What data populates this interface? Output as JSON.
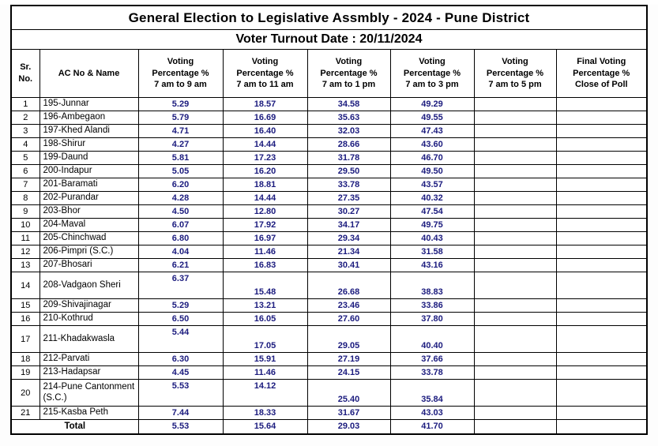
{
  "title": "General Election to Legislative Assmbly - 2024 - Pune District",
  "subtitle": "Voter Turnout Date : 20/11/2024",
  "colors": {
    "number_text": "#1b1b7e",
    "name_text": "#000000",
    "border": "#000000"
  },
  "table": {
    "columns": [
      {
        "lines": [
          "Sr.",
          "No."
        ]
      },
      {
        "lines": [
          "AC No & Name"
        ]
      },
      {
        "lines": [
          "Voting",
          "Percentage %",
          "7 am to 9 am"
        ]
      },
      {
        "lines": [
          "Voting",
          "Percentage %",
          "7 am to 11 am"
        ]
      },
      {
        "lines": [
          "Voting",
          "Percentage %",
          "7 am to 1 pm"
        ]
      },
      {
        "lines": [
          "Voting",
          "Percentage %",
          "7 am to 3 pm"
        ]
      },
      {
        "lines": [
          "Voting",
          "Percentage %",
          "7 am to 5 pm"
        ]
      },
      {
        "lines": [
          "Final Voting",
          "Percentage %",
          "Close of Poll"
        ]
      }
    ],
    "rows": [
      {
        "sr": "1",
        "name": "195-Junnar",
        "values": [
          "5.29",
          "18.57",
          "34.58",
          "49.29",
          "",
          ""
        ]
      },
      {
        "sr": "2",
        "name": "196-Ambegaon",
        "values": [
          "5.79",
          "16.69",
          "35.63",
          "49.55",
          "",
          ""
        ]
      },
      {
        "sr": "3",
        "name": "197-Khed Alandi",
        "values": [
          "4.71",
          "16.40",
          "32.03",
          "47.43",
          "",
          ""
        ]
      },
      {
        "sr": "4",
        "name": "198-Shirur",
        "values": [
          "4.27",
          "14.44",
          "28.66",
          "43.60",
          "",
          ""
        ]
      },
      {
        "sr": "5",
        "name": "199-Daund",
        "values": [
          "5.81",
          "17.23",
          "31.78",
          "46.70",
          "",
          ""
        ]
      },
      {
        "sr": "6",
        "name": "200-Indapur",
        "values": [
          "5.05",
          "16.20",
          "29.50",
          "49.50",
          "",
          ""
        ]
      },
      {
        "sr": "7",
        "name": "201-Baramati",
        "values": [
          "6.20",
          "18.81",
          "33.78",
          "43.57",
          "",
          ""
        ]
      },
      {
        "sr": "8",
        "name": "202-Purandar",
        "values": [
          "4.28",
          "14.44",
          "27.35",
          "40.32",
          "",
          ""
        ]
      },
      {
        "sr": "9",
        "name": "203-Bhor",
        "values": [
          "4.50",
          "12.80",
          "30.27",
          "47.54",
          "",
          ""
        ]
      },
      {
        "sr": "10",
        "name": "204-Maval",
        "values": [
          "6.07",
          "17.92",
          "34.17",
          "49.75",
          "",
          ""
        ]
      },
      {
        "sr": "11",
        "name": "205-Chinchwad",
        "values": [
          "6.80",
          "16.97",
          "29.34",
          "40.43",
          "",
          ""
        ]
      },
      {
        "sr": "12",
        "name": "206-Pimpri (S.C.)",
        "values": [
          "4.04",
          "11.46",
          "21.34",
          "31.58",
          "",
          ""
        ]
      },
      {
        "sr": "13",
        "name": "207-Bhosari",
        "values": [
          "6.21",
          "16.83",
          "30.41",
          "43.16",
          "",
          ""
        ]
      },
      {
        "sr": "14",
        "name": "208-Vadgaon Sheri",
        "tall": true,
        "valign": [
          "top",
          "bottom",
          "bottom",
          "bottom",
          "",
          ""
        ],
        "values": [
          "6.37",
          "15.48",
          "26.68",
          "38.83",
          "",
          ""
        ]
      },
      {
        "sr": "15",
        "name": "209-Shivajinagar",
        "values": [
          "5.29",
          "13.21",
          "23.46",
          "33.86",
          "",
          ""
        ]
      },
      {
        "sr": "16",
        "name": "210-Kothrud",
        "values": [
          "6.50",
          "16.05",
          "27.60",
          "37.80",
          "",
          ""
        ]
      },
      {
        "sr": "17",
        "name": "211-Khadakwasla",
        "tall": true,
        "valign": [
          "top",
          "bottom",
          "bottom",
          "bottom",
          "",
          ""
        ],
        "values": [
          "5.44",
          "17.05",
          "29.05",
          "40.40",
          "",
          ""
        ]
      },
      {
        "sr": "18",
        "name": "212-Parvati",
        "values": [
          "6.30",
          "15.91",
          "27.19",
          "37.66",
          "",
          ""
        ]
      },
      {
        "sr": "19",
        "name": "213-Hadapsar",
        "values": [
          "4.45",
          "11.46",
          "24.15",
          "33.78",
          "",
          ""
        ]
      },
      {
        "sr": "20",
        "name": "214-Pune Cantonment (S.C.)",
        "tall": true,
        "valign": [
          "top",
          "top",
          "bottom",
          "bottom",
          "",
          ""
        ],
        "values": [
          "5.53",
          "14.12",
          "25.40",
          "35.84",
          "",
          ""
        ]
      },
      {
        "sr": "21",
        "name": "215-Kasba Peth",
        "values": [
          "7.44",
          "18.33",
          "31.67",
          "43.03",
          "",
          ""
        ]
      }
    ],
    "total": {
      "label": "Total",
      "values": [
        "5.53",
        "15.64",
        "29.03",
        "41.70",
        "",
        ""
      ]
    }
  }
}
